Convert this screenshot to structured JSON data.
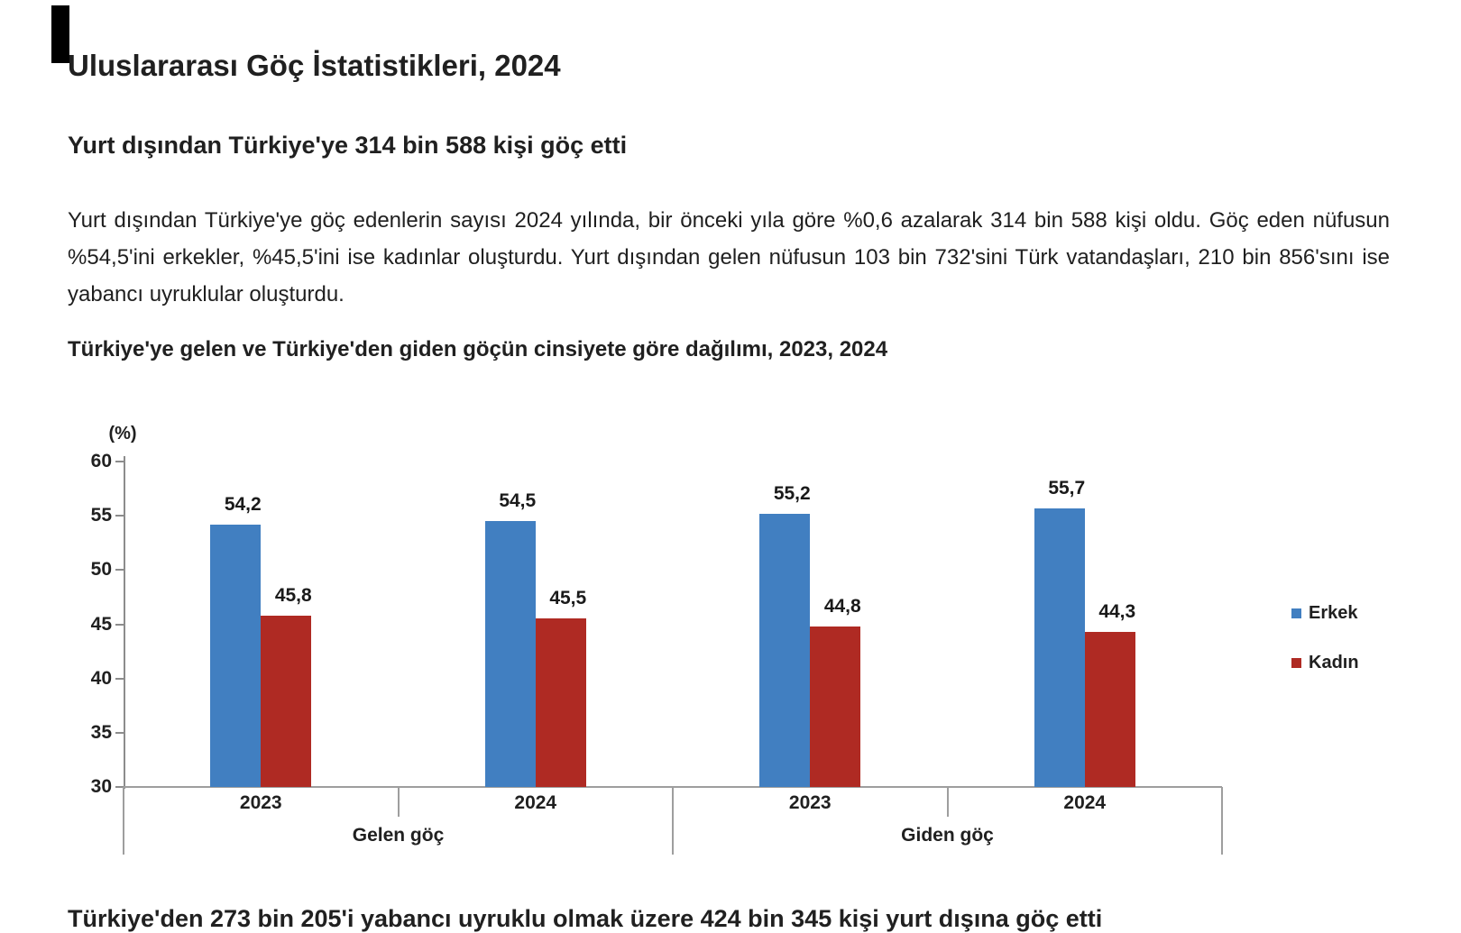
{
  "page": {
    "title": "Uluslararası Göç İstatistikleri, 2024",
    "headline": "Yurt dışından Türkiye'ye 314 bin 588 kişi göç etti",
    "paragraph": "Yurt dışından Türkiye'ye göç edenlerin sayısı 2024 yılında, bir önceki yıla göre %0,6 azalarak 314 bin 588 kişi oldu. Göç eden nüfusun %54,5'ini erkekler, %45,5'ini ise kadınlar oluşturdu. Yurt dışından gelen nüfusun 103 bin 732'sini Türk vatandaşları, 210 bin 856'sını ise yabancı uyruklular oluşturdu.",
    "chart_title": "Türkiye'ye gelen ve Türkiye'den giden göçün cinsiyete göre dağılımı, 2023, 2024",
    "bottom_headline": "Türkiye'den 273 bin 205'i yabancı uyruklu olmak üzere 424 bin 345 kişi yurt dışına göç etti"
  },
  "chart_data": {
    "type": "bar",
    "title": "Türkiye'ye gelen ve Türkiye'den giden göçün cinsiyete göre dağılımı, 2023, 2024",
    "unit_label": "(%)",
    "categories": [
      {
        "year": "2023",
        "group": "Gelen göç"
      },
      {
        "year": "2024",
        "group": "Gelen göç"
      },
      {
        "year": "2023",
        "group": "Giden göç"
      },
      {
        "year": "2024",
        "group": "Giden göç"
      }
    ],
    "group_labels": [
      "Gelen göç",
      "Giden göç"
    ],
    "series": [
      {
        "name": "Erkek",
        "color": "#417FC1",
        "values": [
          54.2,
          54.5,
          55.2,
          55.7
        ],
        "value_labels": [
          "54,2",
          "54,5",
          "55,2",
          "55,7"
        ]
      },
      {
        "name": "Kadın",
        "color": "#AF2A23",
        "values": [
          45.8,
          45.5,
          44.8,
          44.3
        ],
        "value_labels": [
          "45,8",
          "45,5",
          "44,8",
          "44,3"
        ]
      }
    ],
    "y_ticks": [
      60,
      55,
      50,
      45,
      40,
      35,
      30
    ],
    "y_tick_labels": [
      "60",
      "55",
      "50",
      "45",
      "40",
      "35",
      "30"
    ],
    "ylim": [
      30,
      60
    ],
    "grid": false,
    "legend": [
      "Erkek",
      "Kadın"
    ],
    "legend_position": "right"
  }
}
